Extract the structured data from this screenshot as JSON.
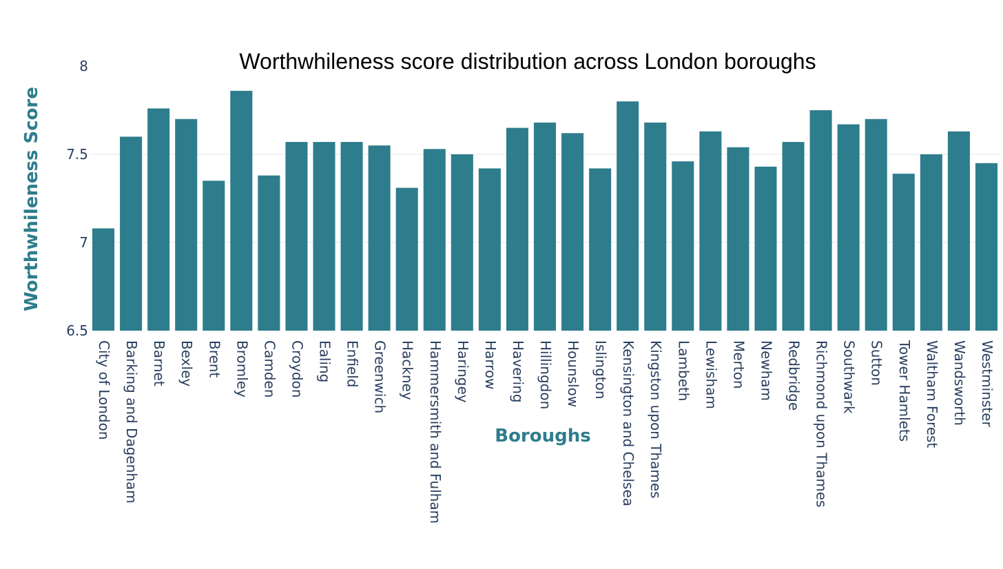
{
  "chart_data": {
    "type": "bar",
    "title": "Worthwhileness score distribution across London boroughs",
    "xlabel": "Boroughs",
    "ylabel": "Worthwhileness Score",
    "ylim": [
      6.5,
      8
    ],
    "yticks": [
      "6.5",
      "7",
      "7.5",
      "8"
    ],
    "grid": true,
    "bar_color": "#2e7d8c",
    "axis_title_color": "#2e7d8c",
    "tick_color": "#2a3f5f",
    "categories": [
      "City of London",
      "Barking and Dagenham",
      "Barnet",
      "Bexley",
      "Brent",
      "Bromley",
      "Camden",
      "Croydon",
      "Ealing",
      "Enfield",
      "Greenwich",
      "Hackney",
      "Hammersmith and Fulham",
      "Haringey",
      "Harrow",
      "Havering",
      "Hillingdon",
      "Hounslow",
      "Islington",
      "Kensington and Chelsea",
      "Kingston upon Thames",
      "Lambeth",
      "Lewisham",
      "Merton",
      "Newham",
      "Redbridge",
      "Richmond upon Thames",
      "Southwark",
      "Sutton",
      "Tower Hamlets",
      "Waltham Forest",
      "Wandsworth",
      "Westminster"
    ],
    "values": [
      7.08,
      7.6,
      7.76,
      7.7,
      7.35,
      7.86,
      7.38,
      7.57,
      7.57,
      7.57,
      7.55,
      7.31,
      7.53,
      7.5,
      7.42,
      7.65,
      7.68,
      7.62,
      7.42,
      7.8,
      7.68,
      7.46,
      7.63,
      7.54,
      7.43,
      7.57,
      7.75,
      7.67,
      7.7,
      7.39,
      7.5,
      7.63,
      7.45
    ]
  }
}
